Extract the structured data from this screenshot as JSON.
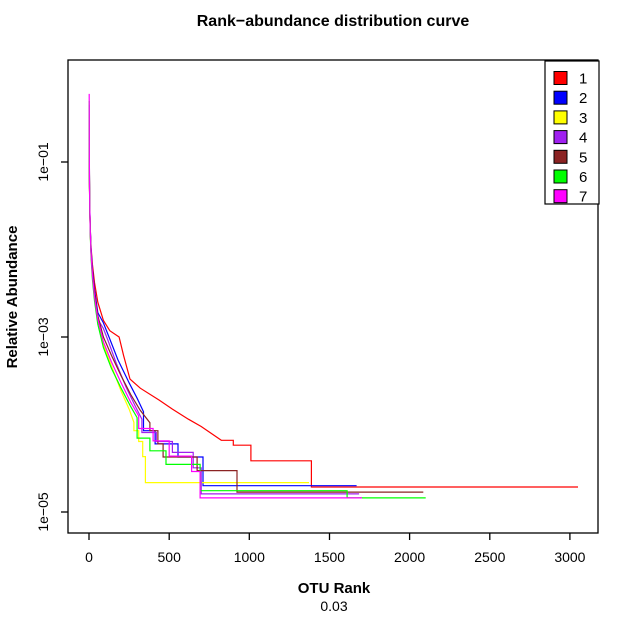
{
  "chart_data": {
    "type": "line",
    "title": "Rank−abundance distribution curve",
    "xlabel": "OTU Rank",
    "xsublabel": "0.03",
    "ylabel": "Relative Abundance",
    "grid": false,
    "log_y": true,
    "xlim": [
      -131,
      3175
    ],
    "ylim_log10": [
      -5.24,
      0.166
    ],
    "x_ticks": [
      "0",
      "500",
      "1000",
      "1500",
      "2000",
      "2500",
      "3000"
    ],
    "x_tick_values": [
      0,
      500,
      1000,
      1500,
      2000,
      2500,
      3000
    ],
    "y_ticks": [
      {
        "label": "1e−01",
        "value": 0.1
      },
      {
        "label": "1e−03",
        "value": 0.001
      },
      {
        "label": "1e−05",
        "value": 1e-05
      }
    ],
    "legend_position": "top-right",
    "axis_color": "#000000",
    "series": [
      {
        "name": "1",
        "color": "#FF0000",
        "points": [
          [
            1,
            0.25
          ],
          [
            2,
            0.085
          ],
          [
            3,
            0.05
          ],
          [
            5,
            0.028
          ],
          [
            8,
            0.017
          ],
          [
            13,
            0.0105
          ],
          [
            21,
            0.0068
          ],
          [
            34,
            0.0042
          ],
          [
            55,
            0.0025
          ],
          [
            90,
            0.00155
          ],
          [
            130,
            0.00118
          ],
          [
            188,
            0.001
          ],
          [
            215,
            0.00062
          ],
          [
            256,
            0.00033
          ],
          [
            320,
            0.00026
          ],
          [
            438,
            0.00019
          ],
          [
            520,
            0.00015
          ],
          [
            620,
            0.000115
          ],
          [
            700,
            9.5e-05
          ],
          [
            825,
            6.6e-05
          ],
          [
            900,
            6.6e-05
          ],
          [
            900,
            5.8e-05
          ],
          [
            1010,
            5.8e-05
          ],
          [
            1010,
            3.85e-05
          ],
          [
            1387,
            3.85e-05
          ],
          [
            1387,
            1.93e-05
          ],
          [
            3050,
            1.93e-05
          ]
        ]
      },
      {
        "name": "2",
        "color": "#0000FF",
        "points": [
          [
            1,
            0.3
          ],
          [
            2,
            0.1
          ],
          [
            3,
            0.055
          ],
          [
            5,
            0.03
          ],
          [
            8,
            0.017
          ],
          [
            13,
            0.01
          ],
          [
            21,
            0.006
          ],
          [
            34,
            0.0035
          ],
          [
            55,
            0.0019
          ],
          [
            90,
            0.00145
          ],
          [
            125,
            0.001
          ],
          [
            180,
            0.00055
          ],
          [
            250,
            0.0003
          ],
          [
            300,
            0.0002
          ],
          [
            340,
            0.00014
          ],
          [
            340,
            8.5e-05
          ],
          [
            412,
            8.5e-05
          ],
          [
            412,
            6e-05
          ],
          [
            555,
            6e-05
          ],
          [
            555,
            4.25e-05
          ],
          [
            711,
            4.25e-05
          ],
          [
            711,
            2e-05
          ],
          [
            1669,
            2e-05
          ]
        ]
      },
      {
        "name": "3",
        "color": "#FFFF00",
        "points": [
          [
            1,
            0.35
          ],
          [
            2,
            0.11
          ],
          [
            3,
            0.055
          ],
          [
            5,
            0.028
          ],
          [
            8,
            0.015
          ],
          [
            13,
            0.0085
          ],
          [
            21,
            0.005
          ],
          [
            34,
            0.0028
          ],
          [
            55,
            0.0015
          ],
          [
            90,
            0.00082
          ],
          [
            150,
            0.00042
          ],
          [
            200,
            0.00024
          ],
          [
            250,
            0.00015
          ],
          [
            280,
            0.000106
          ],
          [
            280,
            8.5e-05
          ],
          [
            310,
            8.5e-05
          ],
          [
            310,
            6.4e-05
          ],
          [
            335,
            6.4e-05
          ],
          [
            335,
            4.3e-05
          ],
          [
            352,
            4.3e-05
          ],
          [
            352,
            2.17e-05
          ],
          [
            1372,
            2.17e-05
          ]
        ]
      },
      {
        "name": "4",
        "color": "#A020F0",
        "points": [
          [
            1,
            0.45
          ],
          [
            2,
            0.13
          ],
          [
            3,
            0.06
          ],
          [
            5,
            0.03
          ],
          [
            8,
            0.016
          ],
          [
            13,
            0.009
          ],
          [
            21,
            0.0053
          ],
          [
            34,
            0.003
          ],
          [
            55,
            0.0016
          ],
          [
            90,
            0.00125
          ],
          [
            120,
            0.0009
          ],
          [
            170,
            0.0005
          ],
          [
            230,
            0.00027
          ],
          [
            290,
            0.00016
          ],
          [
            330,
            0.000115
          ],
          [
            330,
            8.1e-05
          ],
          [
            420,
            8.1e-05
          ],
          [
            420,
            6.4e-05
          ],
          [
            520,
            6.4e-05
          ],
          [
            520,
            4.8e-05
          ],
          [
            650,
            4.8e-05
          ],
          [
            650,
            3.2e-05
          ],
          [
            700,
            3.2e-05
          ],
          [
            700,
            1.61e-05
          ],
          [
            1685,
            1.61e-05
          ]
        ]
      },
      {
        "name": "5",
        "color": "#8B2323",
        "points": [
          [
            1,
            0.3
          ],
          [
            2,
            0.1
          ],
          [
            3,
            0.052
          ],
          [
            5,
            0.028
          ],
          [
            8,
            0.0155
          ],
          [
            13,
            0.009
          ],
          [
            21,
            0.0055
          ],
          [
            34,
            0.0032
          ],
          [
            55,
            0.00175
          ],
          [
            90,
            0.001
          ],
          [
            140,
            0.00062
          ],
          [
            200,
            0.00036
          ],
          [
            260,
            0.00022
          ],
          [
            320,
            0.000145
          ],
          [
            380,
            0.000105
          ],
          [
            380,
            8.5e-05
          ],
          [
            430,
            8.5e-05
          ],
          [
            430,
            6e-05
          ],
          [
            462,
            6e-05
          ],
          [
            462,
            4.25e-05
          ],
          [
            674,
            4.25e-05
          ],
          [
            674,
            2.97e-05
          ],
          [
            923,
            2.97e-05
          ],
          [
            923,
            1.69e-05
          ],
          [
            2085,
            1.69e-05
          ]
        ]
      },
      {
        "name": "6",
        "color": "#00FF00",
        "points": [
          [
            1,
            0.5
          ],
          [
            2,
            0.13
          ],
          [
            3,
            0.058
          ],
          [
            5,
            0.028
          ],
          [
            8,
            0.0145
          ],
          [
            13,
            0.008
          ],
          [
            21,
            0.0046
          ],
          [
            34,
            0.0026
          ],
          [
            55,
            0.0014
          ],
          [
            90,
            0.00076
          ],
          [
            140,
            0.00044
          ],
          [
            200,
            0.00026
          ],
          [
            260,
            0.00016
          ],
          [
            300,
            0.00012
          ],
          [
            300,
            7e-05
          ],
          [
            380,
            7e-05
          ],
          [
            380,
            5e-05
          ],
          [
            480,
            5e-05
          ],
          [
            480,
            3.5e-05
          ],
          [
            693,
            3.5e-05
          ],
          [
            693,
            1.75e-05
          ],
          [
            1610,
            1.75e-05
          ],
          [
            1610,
            1.45e-05
          ],
          [
            2100,
            1.45e-05
          ]
        ]
      },
      {
        "name": "7",
        "color": "#FF00FF",
        "points": [
          [
            1,
            0.6
          ],
          [
            2,
            0.14
          ],
          [
            3,
            0.06
          ],
          [
            5,
            0.029
          ],
          [
            8,
            0.0155
          ],
          [
            13,
            0.0088
          ],
          [
            21,
            0.0052
          ],
          [
            34,
            0.0029
          ],
          [
            55,
            0.0016
          ],
          [
            90,
            0.00088
          ],
          [
            140,
            0.00052
          ],
          [
            200,
            0.0003
          ],
          [
            260,
            0.00018
          ],
          [
            310,
            0.000125
          ],
          [
            310,
            9e-05
          ],
          [
            400,
            9e-05
          ],
          [
            400,
            6.5e-05
          ],
          [
            500,
            6.5e-05
          ],
          [
            500,
            4.35e-05
          ],
          [
            640,
            4.35e-05
          ],
          [
            640,
            2.9e-05
          ],
          [
            693,
            2.9e-05
          ],
          [
            693,
            1.45e-05
          ],
          [
            1703,
            1.45e-05
          ]
        ]
      }
    ]
  }
}
